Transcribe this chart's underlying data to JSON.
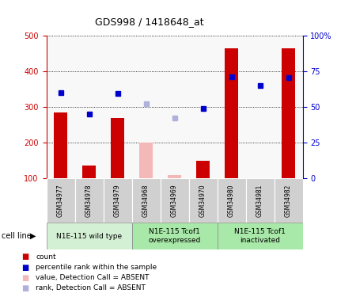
{
  "title": "GDS998 / 1418648_at",
  "samples": [
    "GSM34977",
    "GSM34978",
    "GSM34979",
    "GSM34968",
    "GSM34969",
    "GSM34970",
    "GSM34980",
    "GSM34981",
    "GSM34982"
  ],
  "counts": [
    285,
    135,
    270,
    null,
    null,
    150,
    465,
    null,
    465
  ],
  "counts_absent": [
    null,
    null,
    null,
    200,
    110,
    null,
    null,
    null,
    null
  ],
  "ranks": [
    340,
    280,
    337,
    null,
    null,
    295,
    385,
    360,
    382
  ],
  "ranks_absent": [
    null,
    null,
    null,
    310,
    268,
    null,
    null,
    null,
    null
  ],
  "group_boundaries": [
    {
      "start": 0,
      "end": 2,
      "label": "N1E-115 wild type",
      "color": "#d4f0d4"
    },
    {
      "start": 3,
      "end": 5,
      "label": "N1E-115 Tcof1\noverexpressed",
      "color": "#a8e8a8"
    },
    {
      "start": 6,
      "end": 8,
      "label": "N1E-115 Tcof1\ninactivated",
      "color": "#a8e8a8"
    }
  ],
  "ylim_left": [
    100,
    500
  ],
  "ylim_right": [
    0,
    100
  ],
  "yticks_left": [
    100,
    200,
    300,
    400,
    500
  ],
  "yticks_right": [
    0,
    25,
    50,
    75,
    100
  ],
  "ytick_labels_right": [
    "0",
    "25",
    "50",
    "75",
    "100%"
  ],
  "bar_color": "#cc0000",
  "bar_absent_color": "#f5b8b8",
  "rank_color": "#0000cc",
  "rank_absent_color": "#b0b0dd",
  "sample_box_color": "#d0d0d0",
  "legend_items": [
    {
      "label": "count",
      "color": "#cc0000"
    },
    {
      "label": "percentile rank within the sample",
      "color": "#0000cc"
    },
    {
      "label": "value, Detection Call = ABSENT",
      "color": "#f5b8b8"
    },
    {
      "label": "rank, Detection Call = ABSENT",
      "color": "#b0b0dd"
    }
  ]
}
